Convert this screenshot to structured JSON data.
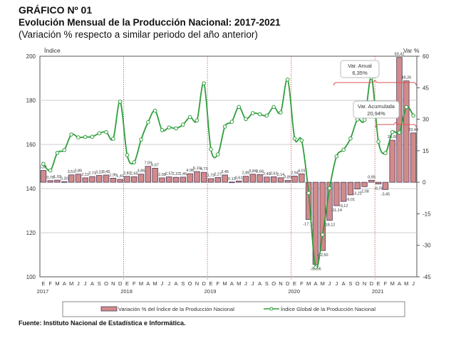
{
  "header": {
    "label": "GRÁFICO Nº 01",
    "title": "Evolución Mensual de la Producción Nacional: 2017-2021",
    "subtitle": "(Variación % respecto a similar periodo del año anterior)"
  },
  "source": "Fuente: Instituto Nacional de Estadística e Informática.",
  "chart_data": {
    "type": "bar+line",
    "left_axis": {
      "label": "Índice",
      "range": [
        100,
        200
      ],
      "ticks": [
        "100",
        "120",
        "140",
        "160",
        "180",
        "200"
      ]
    },
    "right_axis": {
      "label": "Var %",
      "range": [
        -45,
        60
      ],
      "ticks": [
        "-45",
        "-30",
        "-15",
        "0",
        "15",
        "30",
        "45",
        "60"
      ]
    },
    "grid": true,
    "month_labels": [
      "E",
      "F",
      "M",
      "A",
      "M",
      "J",
      "J",
      "A",
      "S",
      "O",
      "N",
      "D",
      "E",
      "F",
      "M",
      "A",
      "M",
      "J",
      "J",
      "A",
      "S",
      "O",
      "N",
      "D",
      "E",
      "F",
      "M",
      "A",
      "M",
      "J",
      "J",
      "A",
      "S",
      "O",
      "N",
      "D",
      "E",
      "F",
      "M",
      "A",
      "M",
      "J",
      "J",
      "A",
      "S",
      "O",
      "N",
      "D",
      "E",
      "F",
      "M",
      "A",
      "M",
      "J"
    ],
    "year_labels": [
      "2017",
      "2018",
      "2019",
      "2020",
      "2021"
    ],
    "legend_position": "bottom",
    "series": [
      {
        "name": "Variación % del Índice de la Producción Nacional",
        "type": "bar",
        "axis": "right",
        "color": "#d28a8a",
        "values": [
          5.61,
          0.78,
          1.03,
          0.3,
          3.51,
          3.86,
          2.11,
          2.71,
          3.23,
          3.45,
          1.95,
          1.41,
          2.82,
          2.65,
          3.86,
          7.59,
          6.67,
          2.08,
          2.57,
          2.37,
          2.45,
          4.08,
          5.1,
          4.73,
          1.73,
          2.27,
          3.45,
          0.13,
          0.61,
          2.85,
          3.84,
          3.68,
          2.49,
          2.62,
          2.14,
          0.89,
          2.94,
          4.01,
          -17.72,
          -39.06,
          -32.5,
          -18.12,
          -11.14,
          -9.12,
          -6.01,
          -3.21,
          -2.08,
          0.95,
          -0.79,
          -3.45,
          20.0,
          59.42,
          48.26,
          23.48
        ],
        "labels": [
          "5,61",
          "0,78",
          "1,03",
          "0,30",
          "3,51",
          "3,86",
          "2,11",
          "2,71",
          "3,23",
          "3,45",
          "1,95",
          "1,41",
          "2,82",
          "2,65",
          "3,86",
          "7,59",
          "6,67",
          "2,08",
          "2,57",
          "2,37",
          "2,45",
          "4,08",
          "5,10",
          "4,73",
          "1,73",
          "2,27",
          "3,45",
          "0,13",
          "0,61",
          "2,85",
          "3,84",
          "3,68",
          "2,49",
          "2,62",
          "2,14",
          "0,89",
          "2,94",
          "4,01",
          "-17,72",
          "-39,06",
          "-32,50",
          "-18,12",
          "-11,14",
          "-9,12",
          "-6,01",
          "-3,21",
          "-2,08",
          "0,95",
          "-0,79",
          "-3,45",
          "20,00",
          "59,42",
          "48,26",
          "23,48"
        ]
      },
      {
        "name": "Índice Global de la Producción Nacional",
        "type": "line",
        "axis": "left",
        "color": "#2e9e3c",
        "values": [
          151.2,
          148.2,
          156.2,
          157.5,
          164.5,
          163.2,
          163.4,
          163.5,
          165.1,
          165.6,
          162.6,
          179.4,
          155.2,
          151.9,
          162.2,
          170.1,
          175.3,
          166.5,
          167.7,
          167.3,
          169.0,
          172.4,
          170.9,
          187.7,
          157.8,
          155.5,
          168.1,
          170.3,
          177.0,
          171.5,
          174.2,
          173.7,
          173.1,
          177.0,
          174.5,
          189.4,
          162.7,
          161.8,
          138.0,
          104.3,
          119.1,
          140.1,
          154.6,
          157.6,
          162.7,
          171.3,
          171.1,
          190.3,
          161.3,
          156.1,
          165.6,
          165.4,
          176.9,
          173.1
        ]
      }
    ],
    "annotations": [
      {
        "title": "Var. Anual",
        "value": "6,35%"
      },
      {
        "title": "Var. Acumulada",
        "value": "20,94%"
      }
    ]
  }
}
